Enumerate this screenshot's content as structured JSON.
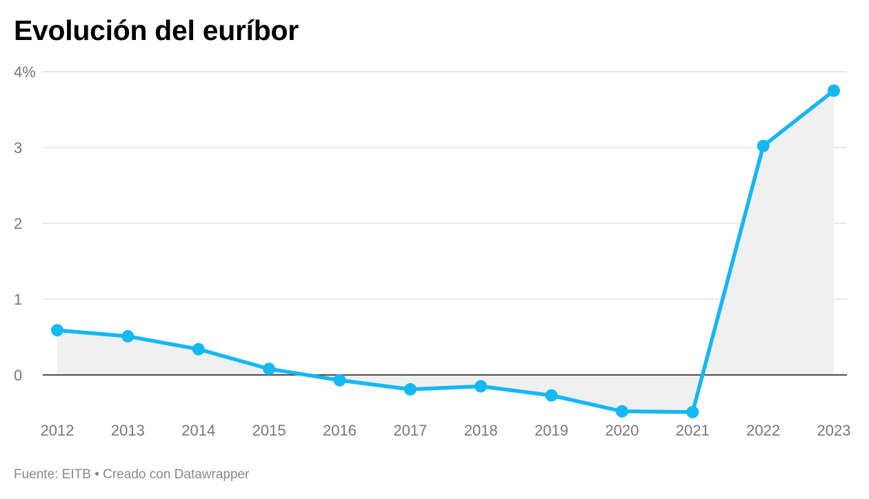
{
  "chart_data": {
    "type": "area",
    "title": "Evolución del euríbor",
    "x": [
      "2012",
      "2013",
      "2014",
      "2015",
      "2016",
      "2017",
      "2018",
      "2019",
      "2020",
      "2021",
      "2022",
      "2023"
    ],
    "series": [
      {
        "values": [
          0.59,
          0.51,
          0.34,
          0.08,
          -0.07,
          -0.19,
          -0.15,
          -0.27,
          -0.48,
          -0.49,
          3.02,
          3.75
        ]
      }
    ],
    "ylim": [
      -0.5,
      4
    ],
    "y_ticks": [
      {
        "value": 4,
        "label": "4%"
      },
      {
        "value": 3,
        "label": "3"
      },
      {
        "value": 2,
        "label": "2"
      },
      {
        "value": 1,
        "label": "1"
      },
      {
        "value": 0,
        "label": "0"
      }
    ],
    "grid": true,
    "legend": "none",
    "colors": {
      "line": "#14b8f2",
      "area": "#f0f0f0",
      "grid": "#e2e2e2",
      "zero_line": "#333333"
    }
  },
  "footer": {
    "source": "Fuente: EITB",
    "separator": "•",
    "credit": "Creado con Datawrapper"
  }
}
